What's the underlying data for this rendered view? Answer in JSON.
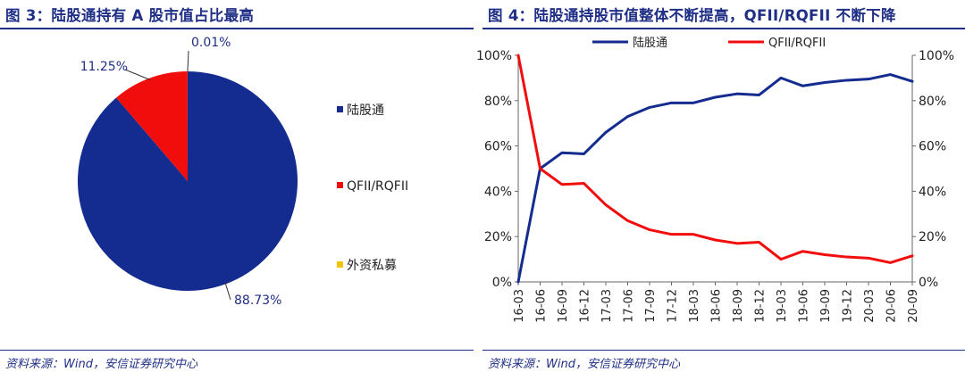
{
  "left": {
    "title": "图 3：陆股通持有 A 股市值占比最高",
    "source": "资料来源：Wind，安信证券研究中心"
  },
  "right": {
    "title": "图 4：陆股通持股市值整体不断提高，QFII/RQFII 不断下降",
    "source": "资料来源：Wind，安信证券研究中心"
  },
  "chart_data": [
    {
      "type": "pie",
      "labels": [
        "陆股通",
        "QFII/RQFII",
        "外资私募"
      ],
      "values": [
        88.73,
        11.25,
        0.01
      ],
      "data_labels": [
        "88.73%",
        "11.25%",
        "0.01%"
      ],
      "colors": [
        "#142b8f",
        "#f20d0d",
        "#f5c400"
      ],
      "legend": "right"
    },
    {
      "type": "line",
      "x": [
        "16-03",
        "16-06",
        "16-09",
        "16-12",
        "17-03",
        "17-06",
        "17-09",
        "17-12",
        "18-03",
        "18-06",
        "18-09",
        "18-12",
        "19-03",
        "19-06",
        "19-09",
        "19-12",
        "20-03",
        "20-06",
        "20-09"
      ],
      "series": [
        {
          "name": "陆股通",
          "color": "#142b8f",
          "values": [
            0,
            50,
            57,
            56.5,
            66,
            73,
            77,
            79,
            79,
            81.5,
            83,
            82.5,
            90,
            86.5,
            88,
            89,
            89.5,
            91.5,
            88.5
          ]
        },
        {
          "name": "QFII/RQFII",
          "color": "#f20d0d",
          "values": [
            100,
            50,
            43,
            43.5,
            34,
            27,
            23,
            21,
            21,
            18.5,
            17,
            17.5,
            10,
            13.5,
            12,
            11,
            10.5,
            8.5,
            11.5
          ]
        }
      ],
      "ylim": [
        0,
        100
      ],
      "y_ticks": [
        "0%",
        "20%",
        "40%",
        "60%",
        "80%",
        "100%"
      ],
      "y2_ticks": [
        "0%",
        "20%",
        "40%",
        "60%",
        "80%",
        "100%"
      ],
      "legend": "top"
    }
  ]
}
